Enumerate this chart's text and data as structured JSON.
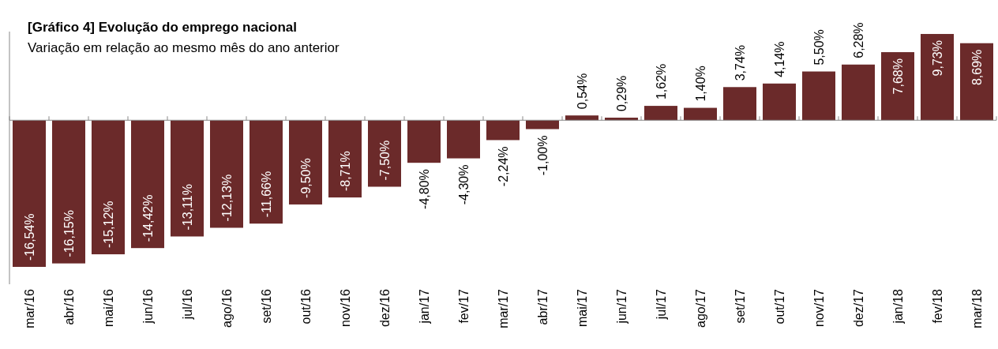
{
  "chart_data": {
    "type": "bar",
    "title": "[Gráfico 4] Evolução do emprego nacional",
    "subtitle": "Variação em relação ao mesmo mês do ano anterior",
    "categories": [
      "mar/16",
      "abr/16",
      "mai/16",
      "jun/16",
      "jul/16",
      "ago/16",
      "set/16",
      "out/16",
      "nov/16",
      "dez/16",
      "jan/17",
      "fev/17",
      "mar/17",
      "abr/17",
      "mai/17",
      "jun/17",
      "jul/17",
      "ago/17",
      "set/17",
      "out/17",
      "nov/17",
      "dez/17",
      "jan/18",
      "fev/18",
      "mar/18"
    ],
    "values": [
      -16.54,
      -16.15,
      -15.12,
      -14.42,
      -13.11,
      -12.13,
      -11.66,
      -9.5,
      -8.71,
      -7.5,
      -4.8,
      -4.3,
      -2.24,
      -1.0,
      0.54,
      0.29,
      1.62,
      1.4,
      3.74,
      4.14,
      5.5,
      6.28,
      7.68,
      9.73,
      8.69
    ],
    "value_labels": [
      "-16,54%",
      "-16,15%",
      "-15,12%",
      "-14,42%",
      "-13,11%",
      "-12,13%",
      "-11,66%",
      "-9,50%",
      "-8,71%",
      "-7,50%",
      "-4,80%",
      "-4,30%",
      "-2,24%",
      "-1,00%",
      "0,54%",
      "0,29%",
      "1,62%",
      "1,40%",
      "3,74%",
      "4,14%",
      "5,50%",
      "6,28%",
      "7,68%",
      "9,73%",
      "8,69%"
    ],
    "color": "#6b2a2a",
    "ylim": [
      -18.5,
      10
    ]
  }
}
